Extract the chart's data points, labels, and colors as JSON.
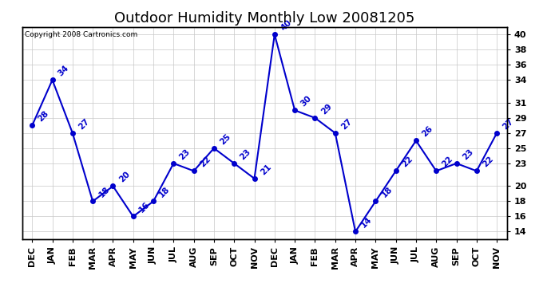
{
  "title": "Outdoor Humidity Monthly Low 20081205",
  "copyright": "Copyright 2008 Cartronics.com",
  "months": [
    "DEC",
    "JAN",
    "FEB",
    "MAR",
    "APR",
    "MAY",
    "JUN",
    "JUL",
    "AUG",
    "SEP",
    "OCT",
    "NOV",
    "DEC",
    "JAN",
    "FEB",
    "MAR",
    "APR",
    "MAY",
    "JUN",
    "JUL",
    "AUG",
    "SEP",
    "OCT",
    "NOV"
  ],
  "values": [
    28,
    34,
    27,
    18,
    20,
    16,
    18,
    23,
    22,
    25,
    23,
    21,
    40,
    30,
    29,
    27,
    14,
    18,
    22,
    26,
    22,
    23,
    22,
    27
  ],
  "ylim": [
    13,
    41
  ],
  "yticks": [
    14,
    16,
    18,
    20,
    23,
    25,
    27,
    29,
    31,
    34,
    36,
    38,
    40
  ],
  "line_color": "#0000cc",
  "marker_color": "#0000cc",
  "grid_color": "#c8c8c8",
  "bg_color": "#ffffff",
  "title_fontsize": 13,
  "label_fontsize": 8,
  "annotation_fontsize": 7.5
}
